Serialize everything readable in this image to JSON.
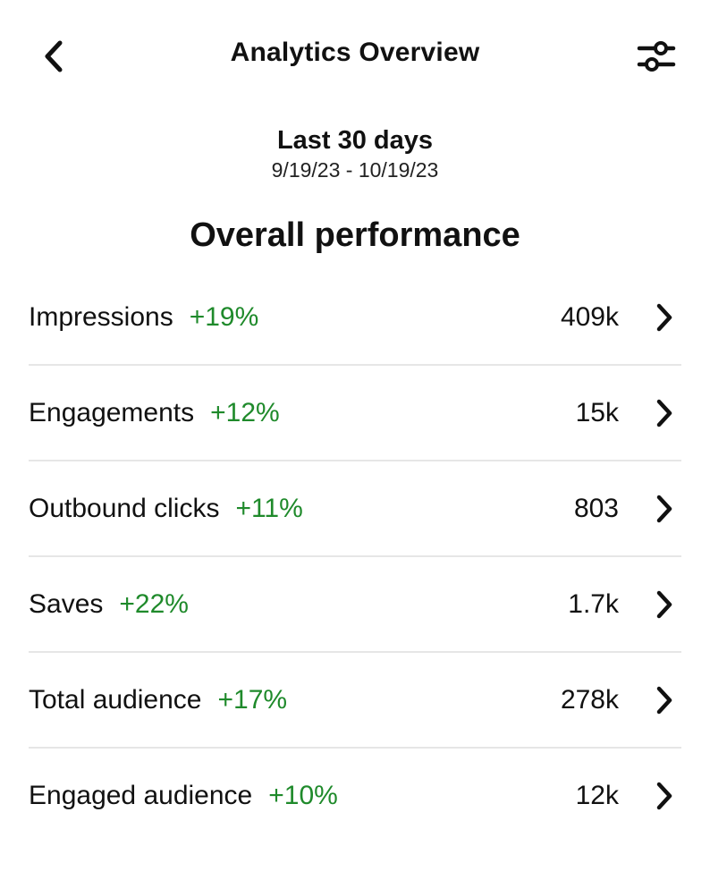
{
  "header": {
    "title": "Analytics Overview",
    "back_icon": "chevron-left-icon",
    "filter_icon": "sliders-icon"
  },
  "date_range": {
    "label": "Last 30 days",
    "dates": "9/19/23 - 10/19/23"
  },
  "section": {
    "title": "Overall performance"
  },
  "colors": {
    "positive_change": "#1f8a2b",
    "divider": "#e6e6e6"
  },
  "metrics": [
    {
      "name": "Impressions",
      "change": "+19%",
      "value": "409k"
    },
    {
      "name": "Engagements",
      "change": "+12%",
      "value": "15k"
    },
    {
      "name": "Outbound clicks",
      "change": "+11%",
      "value": "803"
    },
    {
      "name": "Saves",
      "change": "+22%",
      "value": "1.7k"
    },
    {
      "name": "Total audience",
      "change": "+17%",
      "value": "278k"
    },
    {
      "name": "Engaged audience",
      "change": "+10%",
      "value": "12k"
    }
  ]
}
